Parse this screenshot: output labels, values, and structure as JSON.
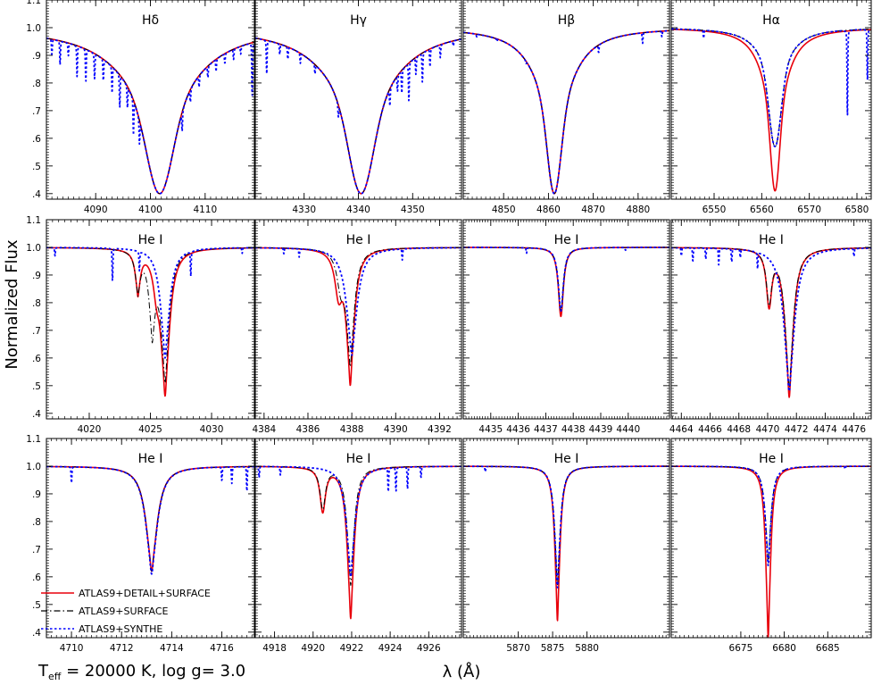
{
  "figure": {
    "ylabel": "Normalized Flux",
    "xlabel": "λ (Å)",
    "caption_main": "T",
    "caption_sub": "eff",
    "caption_rest": " = 20000 K, log g= 3.0"
  },
  "colors": {
    "detail": "#e8000b",
    "surface": "#000000",
    "synthe": "#0000ff"
  },
  "legend": [
    {
      "label": "ATLAS9+DETAIL+SURFACE",
      "style": "solid",
      "color": "#e8000b"
    },
    {
      "label": "ATLAS9+SURFACE",
      "style": "dashdot",
      "color": "#000000"
    },
    {
      "label": "ATLAS9+SYNTHE",
      "style": "dotted",
      "color": "#0000ff"
    }
  ],
  "chart_data": [
    {
      "type": "line",
      "title": "Hδ",
      "xlim": [
        4081,
        4119
      ],
      "ylim": [
        0.38,
        1.1
      ],
      "xticks": [
        4090,
        4100,
        4110
      ],
      "yticklabels": [
        "1.1",
        "1.0",
        ".9",
        ".8",
        ".7",
        ".6",
        ".5",
        ".4"
      ],
      "series": [
        {
          "name": "ATLAS9+DETAIL+SURFACE",
          "lines": [
            {
              "c": 4101.7,
              "d": 0.6,
              "w": 7.5,
              "p": 0.55,
              "g": 0.3
            }
          ]
        },
        {
          "name": "ATLAS9+SURFACE",
          "lines": [
            {
              "c": 4101.7,
              "d": 0.6,
              "w": 7.5,
              "p": 0.55,
              "g": 0.3
            }
          ]
        },
        {
          "name": "ATLAS9+SYNTHE",
          "lines": [
            {
              "c": 4101.7,
              "d": 0.6,
              "w": 7.5,
              "p": 0.55,
              "g": 0.3
            }
          ],
          "metal": [
            [
              4082.0,
              0.06
            ],
            [
              4083.5,
              0.09
            ],
            [
              4085.0,
              0.05
            ],
            [
              4086.6,
              0.12
            ],
            [
              4088.2,
              0.13
            ],
            [
              4089.8,
              0.1
            ],
            [
              4091.4,
              0.09
            ],
            [
              4093.0,
              0.11
            ],
            [
              4094.4,
              0.14
            ],
            [
              4095.8,
              0.1
            ],
            [
              4096.9,
              0.17
            ],
            [
              4098.0,
              0.13
            ],
            [
              4105.8,
              0.1
            ],
            [
              4107.3,
              0.06
            ],
            [
              4108.9,
              0.05
            ],
            [
              4110.5,
              0.05
            ],
            [
              4112.0,
              0.05
            ],
            [
              4113.6,
              0.04
            ],
            [
              4115.2,
              0.04
            ],
            [
              4116.5,
              0.03
            ],
            [
              4118.6,
              0.21
            ]
          ]
        }
      ]
    },
    {
      "type": "line",
      "title": "Hγ",
      "xlim": [
        4321,
        4359
      ],
      "ylim": [
        0.38,
        1.1
      ],
      "xticks": [
        4330,
        4340,
        4350
      ],
      "series": [
        {
          "name": "ATLAS9+DETAIL+SURFACE",
          "lines": [
            {
              "c": 4340.5,
              "d": 0.6,
              "w": 7.0,
              "p": 0.55,
              "g": 0.3
            }
          ]
        },
        {
          "name": "ATLAS9+SURFACE",
          "lines": [
            {
              "c": 4340.5,
              "d": 0.6,
              "w": 7.0,
              "p": 0.55,
              "g": 0.3
            }
          ]
        },
        {
          "name": "ATLAS9+SYNTHE",
          "lines": [
            {
              "c": 4340.5,
              "d": 0.6,
              "w": 7.0,
              "p": 0.55,
              "g": 0.3
            }
          ],
          "metal": [
            [
              4323.1,
              0.13
            ],
            [
              4325.5,
              0.04
            ],
            [
              4327.0,
              0.05
            ],
            [
              4329.3,
              0.04
            ],
            [
              4332.0,
              0.04
            ],
            [
              4336.3,
              0.06
            ],
            [
              4345.8,
              0.08
            ],
            [
              4347.2,
              0.07
            ],
            [
              4348.0,
              0.1
            ],
            [
              4349.3,
              0.16
            ],
            [
              4350.6,
              0.07
            ],
            [
              4351.8,
              0.12
            ],
            [
              4353.2,
              0.07
            ],
            [
              4355.1,
              0.05
            ],
            [
              4357.5,
              0.02
            ]
          ]
        }
      ]
    },
    {
      "type": "line",
      "title": "Hβ",
      "xlim": [
        4841,
        4887
      ],
      "ylim": [
        0.38,
        1.1
      ],
      "xticks": [
        4850,
        4860,
        4870,
        4880
      ],
      "series": [
        {
          "name": "ATLAS9+DETAIL+SURFACE",
          "lines": [
            {
              "c": 4861.3,
              "d": 0.6,
              "w": 4.8,
              "p": 0.55,
              "g": 0.3
            }
          ]
        },
        {
          "name": "ATLAS9+SURFACE",
          "lines": [
            {
              "c": 4861.3,
              "d": 0.6,
              "w": 4.8,
              "p": 0.55,
              "g": 0.3
            }
          ]
        },
        {
          "name": "ATLAS9+SYNTHE",
          "lines": [
            {
              "c": 4861.3,
              "d": 0.6,
              "w": 4.8,
              "p": 0.55,
              "g": 0.3
            }
          ],
          "metal": [
            [
              4844.0,
              0.01
            ],
            [
              4848.5,
              0.01
            ],
            [
              4855.0,
              0.01
            ],
            [
              4871.2,
              0.03
            ],
            [
              4881.0,
              0.04
            ],
            [
              4885.3,
              0.02
            ]
          ]
        }
      ]
    },
    {
      "type": "line",
      "title": "Hα",
      "xlim": [
        6541,
        6583
      ],
      "ylim": [
        0.38,
        1.1
      ],
      "xticks": [
        6550,
        6560,
        6570,
        6580
      ],
      "series": [
        {
          "name": "ATLAS9+DETAIL+SURFACE",
          "lines": [
            {
              "c": 6562.8,
              "d": 0.59,
              "w": 3.0,
              "p": 0.55,
              "g": 0.3
            }
          ]
        },
        {
          "name": "ATLAS9+SURFACE",
          "lines": [
            {
              "c": 6562.8,
              "d": 0.43,
              "w": 3.4,
              "p": 0.45,
              "g": 0.35
            }
          ]
        },
        {
          "name": "ATLAS9+SYNTHE",
          "lines": [
            {
              "c": 6562.8,
              "d": 0.43,
              "w": 3.4,
              "p": 0.45,
              "g": 0.35
            }
          ],
          "metal": [
            [
              6547.8,
              0.03
            ],
            [
              6578.0,
              0.32
            ],
            [
              6582.2,
              0.19
            ]
          ]
        }
      ]
    },
    {
      "type": "line",
      "title": "He I",
      "xlim": [
        4016.5,
        4033.5
      ],
      "ylim": [
        0.38,
        1.1
      ],
      "xticks": [
        4020,
        4025,
        4030
      ],
      "series": [
        {
          "name": "ATLAS9+DETAIL+SURFACE",
          "lines": [
            {
              "c": 4023.98,
              "d": 0.16,
              "w": 0.25,
              "p": 0.9,
              "g": 0.15
            },
            {
              "c": 4026.2,
              "d": 0.53,
              "w": 0.45,
              "p": 0.9,
              "g": 0.15
            },
            {
              "c": 4025.5,
              "d": 0.1,
              "w": 0.3,
              "p": 1.0,
              "g": 0.1
            }
          ]
        },
        {
          "name": "ATLAS9+SURFACE",
          "lines": [
            {
              "c": 4023.98,
              "d": 0.15,
              "w": 0.25,
              "p": 0.9,
              "g": 0.15
            },
            {
              "c": 4025.15,
              "d": 0.3,
              "w": 0.3,
              "p": 0.9,
              "g": 0.15
            },
            {
              "c": 4026.2,
              "d": 0.48,
              "w": 0.42,
              "p": 0.9,
              "g": 0.15
            }
          ]
        },
        {
          "name": "ATLAS9+SYNTHE",
          "lines": [
            {
              "c": 4026.2,
              "d": 0.4,
              "w": 0.45,
              "p": 0.9,
              "g": 0.15
            }
          ],
          "metal": [
            [
              4017.2,
              0.03
            ],
            [
              4021.9,
              0.12
            ],
            [
              4024.1,
              0.07
            ],
            [
              4028.3,
              0.09
            ],
            [
              4032.5,
              0.02
            ]
          ]
        }
      ]
    },
    {
      "type": "line",
      "title": "He I",
      "xlim": [
        4383.6,
        4393.0
      ],
      "ylim": [
        0.38,
        1.1
      ],
      "xticks": [
        4384,
        4386,
        4388,
        4390,
        4392
      ],
      "series": [
        {
          "name": "ATLAS9+DETAIL+SURFACE",
          "lines": [
            {
              "c": 4387.93,
              "d": 0.49,
              "w": 0.22,
              "p": 0.9,
              "g": 0.15
            },
            {
              "c": 4387.4,
              "d": 0.15,
              "w": 0.2,
              "p": 1.0,
              "g": 0.1
            }
          ]
        },
        {
          "name": "ATLAS9+SURFACE",
          "lines": [
            {
              "c": 4387.93,
              "d": 0.42,
              "w": 0.22,
              "p": 0.9,
              "g": 0.15
            },
            {
              "c": 4387.5,
              "d": 0.12,
              "w": 0.2,
              "p": 1.0,
              "g": 0.1
            }
          ]
        },
        {
          "name": "ATLAS9+SYNTHE",
          "lines": [
            {
              "c": 4388.0,
              "d": 0.39,
              "w": 0.3,
              "p": 0.9,
              "g": 0.15
            }
          ],
          "metal": [
            [
              4384.9,
              0.02
            ],
            [
              4385.6,
              0.03
            ],
            [
              4390.3,
              0.04
            ]
          ]
        }
      ]
    },
    {
      "type": "line",
      "title": "He I",
      "xlim": [
        4434.0,
        4441.5
      ],
      "ylim": [
        0.38,
        1.1
      ],
      "xticks": [
        4435,
        4436,
        4437,
        4438,
        4439,
        4440
      ],
      "series": [
        {
          "name": "ATLAS9+DETAIL+SURFACE",
          "lines": [
            {
              "c": 4437.55,
              "d": 0.25,
              "w": 0.11,
              "p": 1.0,
              "g": 0.1
            }
          ]
        },
        {
          "name": "ATLAS9+SURFACE",
          "lines": [
            {
              "c": 4437.55,
              "d": 0.23,
              "w": 0.11,
              "p": 1.0,
              "g": 0.1
            }
          ]
        },
        {
          "name": "ATLAS9+SYNTHE",
          "lines": [
            {
              "c": 4437.55,
              "d": 0.23,
              "w": 0.11,
              "p": 1.0,
              "g": 0.1
            }
          ],
          "metal": [
            [
              4436.3,
              0.02
            ],
            [
              4439.9,
              0.01
            ]
          ]
        }
      ]
    },
    {
      "type": "line",
      "title": "He I",
      "xlim": [
        4463.3,
        4477.2
      ],
      "ylim": [
        0.38,
        1.1
      ],
      "xticks": [
        4464,
        4466,
        4468,
        4470,
        4472,
        4474,
        4476
      ],
      "series": [
        {
          "name": "ATLAS9+DETAIL+SURFACE",
          "lines": [
            {
              "c": 4470.1,
              "d": 0.2,
              "w": 0.22,
              "p": 1.0,
              "g": 0.1
            },
            {
              "c": 4471.5,
              "d": 0.54,
              "w": 0.35,
              "p": 0.9,
              "g": 0.15
            }
          ]
        },
        {
          "name": "ATLAS9+SURFACE",
          "lines": [
            {
              "c": 4470.1,
              "d": 0.19,
              "w": 0.22,
              "p": 1.0,
              "g": 0.1
            },
            {
              "c": 4471.5,
              "d": 0.51,
              "w": 0.35,
              "p": 0.9,
              "g": 0.15
            }
          ]
        },
        {
          "name": "ATLAS9+SYNTHE",
          "lines": [
            {
              "c": 4471.5,
              "d": 0.52,
              "w": 0.45,
              "p": 0.9,
              "g": 0.15
            }
          ],
          "metal": [
            [
              4464.0,
              0.03
            ],
            [
              4464.8,
              0.05
            ],
            [
              4465.7,
              0.04
            ],
            [
              4466.6,
              0.06
            ],
            [
              4467.5,
              0.05
            ],
            [
              4468.1,
              0.03
            ],
            [
              4469.3,
              0.06
            ],
            [
              4476.0,
              0.03
            ]
          ]
        }
      ]
    },
    {
      "type": "line",
      "title": "He I",
      "xlim": [
        4709.0,
        4717.3
      ],
      "ylim": [
        0.38,
        1.1
      ],
      "xticks": [
        4710,
        4712,
        4714,
        4716
      ],
      "series": [
        {
          "name": "ATLAS9+DETAIL+SURFACE",
          "lines": [
            {
              "c": 4713.2,
              "d": 0.38,
              "w": 0.28,
              "p": 0.9,
              "g": 0.15
            }
          ]
        },
        {
          "name": "ATLAS9+SURFACE",
          "lines": [
            {
              "c": 4713.2,
              "d": 0.38,
              "w": 0.28,
              "p": 0.9,
              "g": 0.15
            }
          ]
        },
        {
          "name": "ATLAS9+SYNTHE",
          "lines": [
            {
              "c": 4713.2,
              "d": 0.39,
              "w": 0.28,
              "p": 0.9,
              "g": 0.15
            }
          ],
          "metal": [
            [
              4710.0,
              0.06
            ],
            [
              4716.0,
              0.05
            ],
            [
              4716.4,
              0.06
            ],
            [
              4717.0,
              0.09
            ]
          ]
        }
      ]
    },
    {
      "type": "line",
      "title": "He I",
      "xlim": [
        4917.0,
        4927.7
      ],
      "ylim": [
        0.38,
        1.1
      ],
      "xticks": [
        4918,
        4920,
        4922,
        4924,
        4926
      ],
      "series": [
        {
          "name": "ATLAS9+DETAIL+SURFACE",
          "lines": [
            {
              "c": 4920.5,
              "d": 0.16,
              "w": 0.17,
              "p": 1.0,
              "g": 0.1
            },
            {
              "c": 4921.95,
              "d": 0.55,
              "w": 0.22,
              "p": 0.9,
              "g": 0.15
            }
          ]
        },
        {
          "name": "ATLAS9+SURFACE",
          "lines": [
            {
              "c": 4920.5,
              "d": 0.15,
              "w": 0.17,
              "p": 1.0,
              "g": 0.1
            },
            {
              "c": 4921.95,
              "d": 0.43,
              "w": 0.22,
              "p": 0.9,
              "g": 0.15
            }
          ]
        },
        {
          "name": "ATLAS9+SYNTHE",
          "lines": [
            {
              "c": 4921.95,
              "d": 0.4,
              "w": 0.27,
              "p": 0.9,
              "g": 0.15
            }
          ],
          "metal": [
            [
              4917.2,
              0.04
            ],
            [
              4918.3,
              0.03
            ],
            [
              4923.9,
              0.09
            ],
            [
              4924.3,
              0.09
            ],
            [
              4924.9,
              0.08
            ],
            [
              4925.6,
              0.04
            ]
          ]
        }
      ]
    },
    {
      "type": "line",
      "title": "He I",
      "xlim": [
        5862,
        5892
      ],
      "ylim": [
        0.38,
        1.1
      ],
      "xticks": [
        5870,
        5875,
        5880
      ],
      "series": [
        {
          "name": "ATLAS9+DETAIL+SURFACE",
          "lines": [
            {
              "c": 5875.7,
              "d": 0.56,
              "w": 0.45,
              "p": 0.9,
              "g": 0.15
            }
          ]
        },
        {
          "name": "ATLAS9+SURFACE",
          "lines": [
            {
              "c": 5875.7,
              "d": 0.43,
              "w": 0.5,
              "p": 0.9,
              "g": 0.15
            }
          ]
        },
        {
          "name": "ATLAS9+SYNTHE",
          "lines": [
            {
              "c": 5875.7,
              "d": 0.44,
              "w": 0.5,
              "p": 0.9,
              "g": 0.15
            }
          ],
          "metal": [
            [
              5865.2,
              0.02
            ]
          ]
        }
      ]
    },
    {
      "type": "line",
      "title": "He I",
      "xlim": [
        6667,
        6690
      ],
      "ylim": [
        0.38,
        1.1
      ],
      "xticks": [
        6675,
        6680,
        6685
      ],
      "series": [
        {
          "name": "ATLAS9+DETAIL+SURFACE",
          "lines": [
            {
              "c": 6678.15,
              "d": 0.62,
              "w": 0.35,
              "p": 0.9,
              "g": 0.15
            }
          ]
        },
        {
          "name": "ATLAS9+SURFACE",
          "lines": [
            {
              "c": 6678.15,
              "d": 0.35,
              "w": 0.4,
              "p": 0.9,
              "g": 0.15
            }
          ]
        },
        {
          "name": "ATLAS9+SYNTHE",
          "lines": [
            {
              "c": 6678.15,
              "d": 0.36,
              "w": 0.4,
              "p": 0.9,
              "g": 0.15
            }
          ],
          "metal": [
            [
              6687.0,
              0.01
            ]
          ]
        }
      ]
    }
  ]
}
